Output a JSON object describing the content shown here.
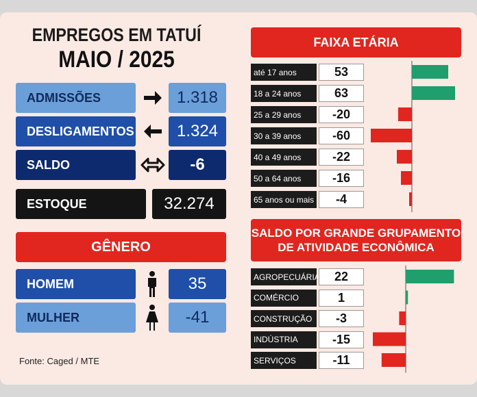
{
  "header": {
    "line1": "EMPREGOS EM TATUÍ",
    "line2": "MAIO / 2025"
  },
  "summary": {
    "admissoes": {
      "label": "ADMISSÕES",
      "value": "1.318"
    },
    "desligamentos": {
      "label": "DESLIGAMENTOS",
      "value": "1.324"
    },
    "saldo": {
      "label": "SALDO",
      "value": "-6"
    },
    "estoque": {
      "label": "ESTOQUE",
      "value": "32.274"
    }
  },
  "genero": {
    "title": "GÊNERO",
    "homem": {
      "label": "HOMEM",
      "value": "35"
    },
    "mulher": {
      "label": "MULHER",
      "value": "-41"
    }
  },
  "source": "Fonte: Caged / MTE",
  "colors": {
    "positive": "#1f9e6e",
    "negative": "#e0261f",
    "accent_red": "#e0261f",
    "navy": "#0e2a6e"
  },
  "chart_data": [
    {
      "type": "bar",
      "title": "FAIXA ETÁRIA",
      "categories": [
        "até 17 anos",
        "18 a 24 anos",
        "25 a 29 anos",
        "30 a 39 anos",
        "40 a 49 anos",
        "50 a 64 anos",
        "65 anos ou mais"
      ],
      "values": [
        53,
        63,
        -20,
        -60,
        -22,
        -16,
        -4
      ],
      "labels": [
        "53",
        "63",
        "-20",
        "-60",
        "-22",
        "-16",
        "-4"
      ]
    },
    {
      "type": "bar",
      "title_line1": "SALDO POR GRANDE GRUPAMENTO",
      "title_line2": "DE ATIVIDADE ECONÔMICA",
      "categories": [
        "AGROPECUÁRIA",
        "COMÉRCIO",
        "CONSTRUÇÃO",
        "INDÚSTRIA",
        "SERVIÇOS"
      ],
      "values": [
        22,
        1,
        -3,
        -15,
        -11
      ],
      "labels": [
        "22",
        "1",
        "-3",
        "-15",
        "-11"
      ]
    }
  ]
}
